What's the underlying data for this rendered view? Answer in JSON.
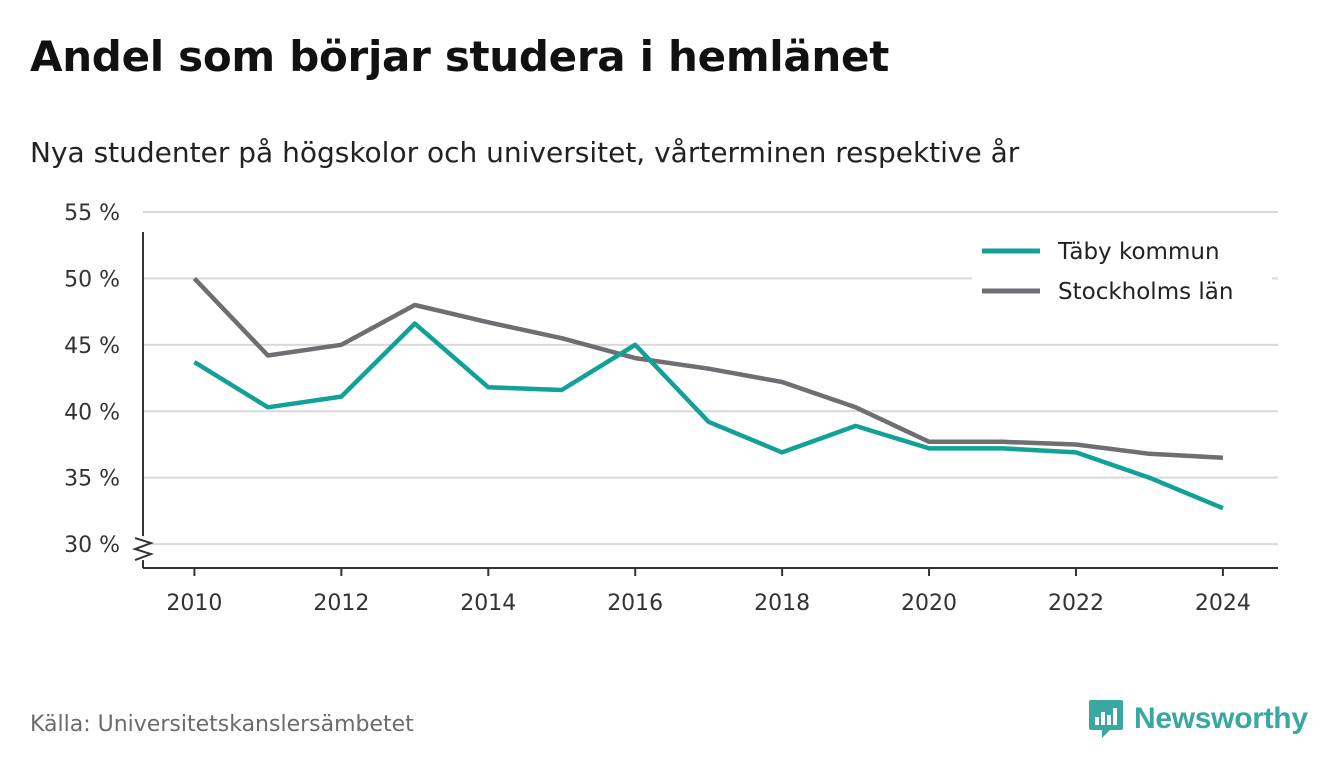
{
  "title": "Andel som börjar studera i hemlänet",
  "subtitle": "Nya studenter på högskolor och universitet, vårterminen respektive år",
  "source": "Källa: Universitetskanslersämbetet",
  "brand": {
    "name": "Newsworthy",
    "icon": "newsworthy-logo-icon",
    "color": "#3aa7a3"
  },
  "chart_data": {
    "type": "line",
    "x": [
      2010,
      2011,
      2012,
      2013,
      2014,
      2015,
      2016,
      2017,
      2018,
      2019,
      2020,
      2021,
      2022,
      2023,
      2024
    ],
    "series": [
      {
        "name": "Täby kommun",
        "color": "#12a196",
        "values": [
          43.7,
          40.3,
          41.1,
          46.6,
          41.8,
          41.6,
          45.0,
          39.2,
          36.9,
          38.9,
          37.2,
          37.2,
          36.9,
          35.0,
          32.7
        ]
      },
      {
        "name": "Stockholms län",
        "color": "#6e6e73",
        "values": [
          50.0,
          44.2,
          45.0,
          48.0,
          46.7,
          45.5,
          44.0,
          43.2,
          42.2,
          40.3,
          37.7,
          37.7,
          37.5,
          36.8,
          36.5
        ]
      }
    ],
    "xticks": [
      2010,
      2012,
      2014,
      2016,
      2018,
      2020,
      2022,
      2024
    ],
    "yticks": [
      30,
      35,
      40,
      45,
      50,
      55
    ],
    "ytick_labels": [
      "30 %",
      "35 %",
      "40 %",
      "45 %",
      "50 %",
      "55 %"
    ],
    "xlim": [
      2009.3,
      2024.75
    ],
    "ylim": [
      28.2,
      55
    ],
    "axis_break": true,
    "grid": true,
    "legend_position": "top-right"
  }
}
